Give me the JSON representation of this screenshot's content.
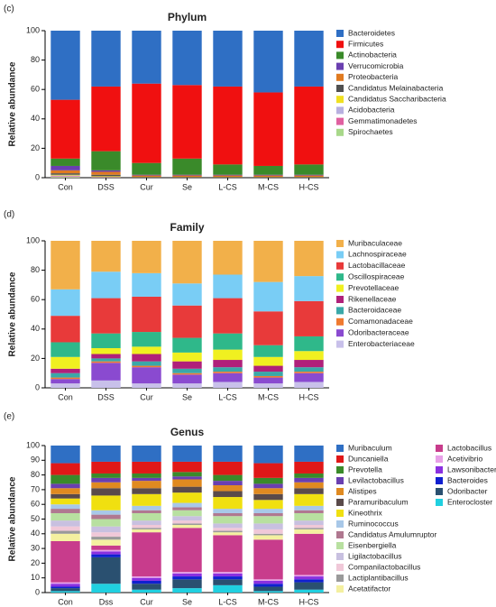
{
  "chart_data": [
    {
      "type": "stacked-bar",
      "panel_label": "(c)",
      "title": "Phylum",
      "y_label": "Relative abundance",
      "categories": [
        "Con",
        "DSS",
        "Cur",
        "Se",
        "L-CS",
        "M-CS",
        "H-CS"
      ],
      "ylim": [
        0,
        100
      ],
      "yticks": [
        0,
        20,
        40,
        60,
        80,
        100
      ],
      "series": [
        {
          "name": "Bacteroidetes",
          "color": "#2f6fc4",
          "values": [
            47,
            38,
            36,
            37,
            38,
            42,
            38
          ]
        },
        {
          "name": "Firmicutes",
          "color": "#f01010",
          "values": [
            40,
            44,
            54,
            50,
            53,
            50,
            53
          ]
        },
        {
          "name": "Actinobacteria",
          "color": "#3a8a2a",
          "values": [
            5,
            13,
            8,
            11,
            7,
            6,
            7
          ]
        },
        {
          "name": "Verrucomicrobia",
          "color": "#6a3fb0",
          "values": [
            3,
            1,
            0.5,
            0.5,
            0.5,
            0.5,
            0.5
          ]
        },
        {
          "name": "Proteobacteria",
          "color": "#e07a20",
          "values": [
            2,
            2,
            1,
            1,
            1,
            1,
            1
          ]
        },
        {
          "name": "Candidatus Melainabacteria",
          "color": "#505050",
          "values": [
            1,
            1,
            0.3,
            0.3,
            0.3,
            0.3,
            0.3
          ]
        },
        {
          "name": "Candidatus Saccharibacteria",
          "color": "#f0e020",
          "values": [
            0.5,
            0.5,
            0.1,
            0.1,
            0.1,
            0.1,
            0.1
          ]
        },
        {
          "name": "Acidobacteria",
          "color": "#b8b0e0",
          "values": [
            0.5,
            0.2,
            0.05,
            0.05,
            0.05,
            0.05,
            0.05
          ]
        },
        {
          "name": "Gemmatimonadetes",
          "color": "#e060a0",
          "values": [
            0.5,
            0.2,
            0.03,
            0.03,
            0.03,
            0.03,
            0.03
          ]
        },
        {
          "name": "Spirochaetes",
          "color": "#a8d88a",
          "values": [
            0.5,
            0.1,
            0.02,
            0.02,
            0.02,
            0.02,
            0.02
          ]
        }
      ]
    },
    {
      "type": "stacked-bar",
      "panel_label": "(d)",
      "title": "Family",
      "y_label": "Relative abundance",
      "categories": [
        "Con",
        "DSS",
        "Cur",
        "Se",
        "L-CS",
        "M-CS",
        "H-CS"
      ],
      "ylim": [
        0,
        100
      ],
      "yticks": [
        0,
        20,
        40,
        60,
        80,
        100
      ],
      "series": [
        {
          "name": "Muribaculaceae",
          "color": "#f2b04a",
          "values": [
            33,
            21,
            22,
            29,
            23,
            28,
            24
          ]
        },
        {
          "name": "Lachnospiraceae",
          "color": "#79cdf5",
          "values": [
            18,
            18,
            16,
            15,
            16,
            20,
            17
          ]
        },
        {
          "name": "Lactobacillaceae",
          "color": "#e83a3a",
          "values": [
            18,
            24,
            24,
            22,
            24,
            23,
            24
          ]
        },
        {
          "name": "Oscillospiraceae",
          "color": "#2fb88a",
          "values": [
            10,
            10,
            10,
            10,
            11,
            8,
            10
          ]
        },
        {
          "name": "Prevotellaceae",
          "color": "#f0f020",
          "values": [
            8,
            4,
            5,
            6,
            7,
            6,
            6
          ]
        },
        {
          "name": "Rikenellaceae",
          "color": "#b0207a",
          "values": [
            3,
            3,
            5,
            5,
            5,
            4,
            5
          ]
        },
        {
          "name": "Bacteroidaceae",
          "color": "#3aa8a8",
          "values": [
            3,
            2,
            3,
            3,
            3,
            3,
            3
          ]
        },
        {
          "name": "Comamonadaceae",
          "color": "#f07a30",
          "values": [
            1,
            1,
            1,
            1,
            1,
            1,
            1
          ]
        },
        {
          "name": "Odoribacteraceae",
          "color": "#8a4ad0",
          "values": [
            3,
            12,
            11,
            6,
            6,
            4,
            6
          ]
        },
        {
          "name": "Enterobacteriaceae",
          "color": "#c8c0ea",
          "values": [
            3,
            5,
            3,
            3,
            4,
            3,
            4
          ]
        }
      ]
    },
    {
      "type": "stacked-bar",
      "panel_label": "(e)",
      "title": "Genus",
      "y_label": "Relative abundance",
      "categories": [
        "Con",
        "Dss",
        "Cur",
        "Se",
        "L-CS",
        "M-CS",
        "H-CS"
      ],
      "ylim": [
        0,
        100
      ],
      "yticks": [
        0,
        10,
        20,
        30,
        40,
        50,
        60,
        70,
        80,
        90,
        100
      ],
      "series": [
        {
          "name": "Muribaculum",
          "color": "#2f6fc4",
          "values": [
            12,
            11,
            11,
            11,
            11,
            12,
            11
          ]
        },
        {
          "name": "Duncaniella",
          "color": "#e01818",
          "values": [
            8,
            8,
            8,
            7,
            9,
            10,
            8
          ]
        },
        {
          "name": "Prevotella",
          "color": "#3a8a2a",
          "values": [
            6,
            3,
            3,
            3,
            4,
            4,
            3
          ]
        },
        {
          "name": "Levilactobacillus",
          "color": "#6a3fb0",
          "values": [
            3,
            3,
            2,
            2,
            3,
            3,
            3
          ]
        },
        {
          "name": "Alistipes",
          "color": "#e08a20",
          "values": [
            4,
            4,
            5,
            5,
            4,
            4,
            4
          ]
        },
        {
          "name": "Paramuribaculum",
          "color": "#5a4a4a",
          "values": [
            3,
            5,
            4,
            4,
            4,
            4,
            4
          ]
        },
        {
          "name": "Kineothrix",
          "color": "#f0e010",
          "values": [
            4,
            10,
            8,
            7,
            8,
            6,
            8
          ]
        },
        {
          "name": "Ruminococcus",
          "color": "#a8c8e8",
          "values": [
            3,
            3,
            3,
            3,
            3,
            3,
            3
          ]
        },
        {
          "name": "Candidatus Amulumruptor",
          "color": "#b07890",
          "values": [
            3,
            3,
            2,
            2,
            2,
            2,
            2
          ]
        },
        {
          "name": "Eisenbergiella",
          "color": "#b8e0a0",
          "values": [
            5,
            5,
            5,
            4,
            5,
            5,
            5
          ]
        },
        {
          "name": "Ligilactobacillus",
          "color": "#c8c0e0",
          "values": [
            4,
            4,
            3,
            3,
            3,
            4,
            3
          ]
        },
        {
          "name": "Companilactobacillus",
          "color": "#f0c8d8",
          "values": [
            3,
            3,
            2,
            2,
            2,
            3,
            2
          ]
        },
        {
          "name": "Lactiplantibacillus",
          "color": "#9a9a9a",
          "values": [
            2,
            2,
            1,
            1,
            1,
            1,
            1
          ]
        },
        {
          "name": "Acetatifactor",
          "color": "#f4f0a0",
          "values": [
            5,
            4,
            2,
            2,
            2,
            3,
            3
          ]
        },
        {
          "name": "Lactobacillus",
          "color": "#c83c8c",
          "values": [
            28,
            3,
            30,
            30,
            25,
            27,
            28
          ]
        },
        {
          "name": "Acetivibrio",
          "color": "#e8a0e8",
          "values": [
            1,
            1,
            1,
            1,
            1,
            1,
            1
          ]
        },
        {
          "name": "Lawsonibacter",
          "color": "#8a30e0",
          "values": [
            2,
            2,
            2,
            2,
            2,
            2,
            2
          ]
        },
        {
          "name": "Bacteroides",
          "color": "#1020d0",
          "values": [
            1,
            2,
            2,
            2,
            2,
            2,
            2
          ]
        },
        {
          "name": "Odoribacter",
          "color": "#2a5070",
          "values": [
            2,
            18,
            4,
            6,
            4,
            3,
            5
          ]
        },
        {
          "name": "Enterocloster",
          "color": "#20d0e0",
          "values": [
            1,
            6,
            2,
            3,
            5,
            1,
            2
          ]
        }
      ]
    }
  ]
}
